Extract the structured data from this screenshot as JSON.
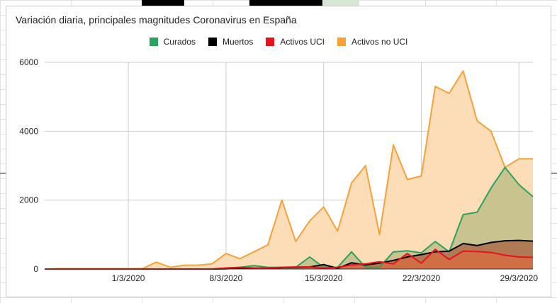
{
  "chart_data": {
    "type": "area",
    "title": "Variación diaria, principales magnitudes Coronavirus en España",
    "xlabel": "",
    "ylabel": "",
    "legend_position": "top",
    "grid": true,
    "ylim": [
      0,
      6000
    ],
    "y_ticks": [
      "0",
      "2000",
      "4000",
      "6000"
    ],
    "x_ticks": [
      {
        "label": "1/3/2020",
        "index": 6
      },
      {
        "label": "8/3/2020",
        "index": 13
      },
      {
        "label": "15/3/2020",
        "index": 20
      },
      {
        "label": "22/3/2020",
        "index": 27
      },
      {
        "label": "29/3/2020",
        "index": 34
      }
    ],
    "x": [
      "24/2",
      "25/2",
      "26/2",
      "27/2",
      "28/2",
      "29/2",
      "1/3",
      "2/3",
      "3/3",
      "4/3",
      "5/3",
      "6/3",
      "7/3",
      "8/3",
      "9/3",
      "10/3",
      "11/3",
      "12/3",
      "13/3",
      "14/3",
      "15/3",
      "16/3",
      "17/3",
      "18/3",
      "19/3",
      "20/3",
      "21/3",
      "22/3",
      "23/3",
      "24/3",
      "25/3",
      "26/3",
      "27/3",
      "28/3",
      "29/3",
      "30/3"
    ],
    "series": [
      {
        "name": "Activos no UCI",
        "color": "#f7a139",
        "fill": "#fcddb8",
        "values": [
          0,
          10,
          10,
          10,
          10,
          10,
          10,
          10,
          200,
          50,
          110,
          110,
          150,
          450,
          300,
          500,
          700,
          2000,
          800,
          1400,
          1800,
          1100,
          2500,
          3000,
          1000,
          3600,
          2600,
          2700,
          5300,
          5100,
          5750,
          4300,
          4000,
          2950,
          3200,
          3200
        ]
      },
      {
        "name": "Curados",
        "color": "#2ca25f",
        "fill": "#c9c38f",
        "values": [
          0,
          0,
          0,
          0,
          0,
          0,
          0,
          0,
          0,
          0,
          0,
          0,
          0,
          0,
          50,
          100,
          50,
          50,
          50,
          350,
          50,
          50,
          500,
          50,
          50,
          500,
          530,
          470,
          800,
          500,
          1580,
          1650,
          2350,
          2950,
          2450,
          2100
        ]
      },
      {
        "name": "Muertos",
        "color": "#000000",
        "fill": "#b07a55",
        "values": [
          0,
          0,
          0,
          0,
          0,
          0,
          0,
          0,
          0,
          0,
          0,
          0,
          0,
          10,
          20,
          20,
          30,
          40,
          50,
          60,
          130,
          20,
          180,
          120,
          170,
          250,
          350,
          420,
          500,
          520,
          740,
          680,
          770,
          820,
          830,
          810
        ]
      },
      {
        "name": "Activos UCI",
        "color": "#e8111c",
        "fill": "#cf6f45",
        "values": [
          0,
          0,
          0,
          0,
          0,
          0,
          0,
          0,
          0,
          0,
          0,
          0,
          0,
          30,
          50,
          30,
          30,
          50,
          60,
          60,
          20,
          50,
          120,
          150,
          210,
          150,
          450,
          170,
          570,
          280,
          520,
          510,
          480,
          400,
          350,
          340
        ]
      }
    ]
  }
}
